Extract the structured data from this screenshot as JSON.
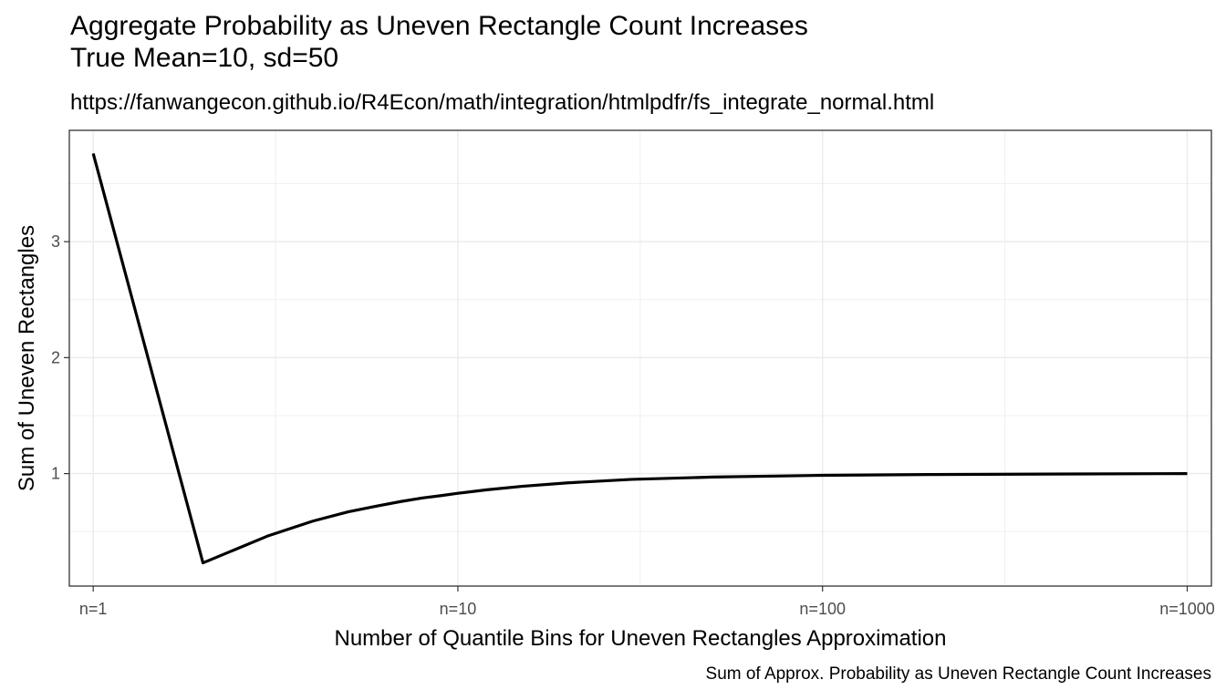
{
  "chart_data": {
    "type": "line",
    "title": "Aggregate Probability as Uneven Rectangle Count Increases",
    "title_line2": "True Mean=10, sd=50",
    "subtitle": "https://fanwangecon.github.io/R4Econ/math/integration/htmlpdfr/fs_integrate_normal.html",
    "caption": "Sum of Approx. Probability as Uneven Rectangle Count Increases",
    "xlabel": "Number of Quantile Bins for Uneven Rectangles Approximation",
    "ylabel": "Sum of Uneven Rectangles",
    "x_scale": "log10",
    "xlim": [
      0.86,
      1165
    ],
    "ylim": [
      0.03,
      3.96
    ],
    "x_ticks": [
      {
        "value": 1,
        "label": "n=1"
      },
      {
        "value": 10,
        "label": "n=10"
      },
      {
        "value": 100,
        "label": "n=100"
      },
      {
        "value": 1000,
        "label": "n=1000"
      }
    ],
    "y_ticks": [
      {
        "value": 1,
        "label": "1"
      },
      {
        "value": 2,
        "label": "2"
      },
      {
        "value": 3,
        "label": "3"
      }
    ],
    "grid": true,
    "line_color": "#000000",
    "series": [
      {
        "x": [
          1,
          2,
          3,
          4,
          5,
          6,
          7,
          8,
          9,
          10,
          12,
          15,
          20,
          30,
          50,
          100,
          200,
          500,
          1000
        ],
        "y": [
          3.76,
          0.23,
          0.46,
          0.59,
          0.67,
          0.72,
          0.76,
          0.79,
          0.81,
          0.83,
          0.86,
          0.89,
          0.92,
          0.95,
          0.97,
          0.985,
          0.992,
          0.997,
          1.0
        ]
      }
    ]
  }
}
